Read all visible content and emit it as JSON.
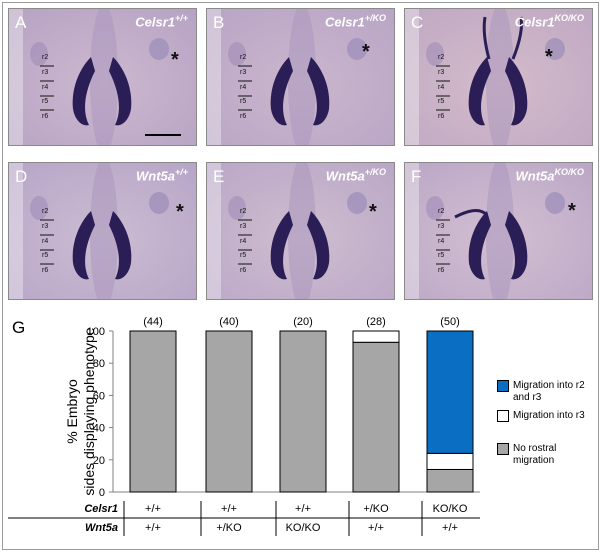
{
  "panels": [
    {
      "letter": "A",
      "gene": "Celsr1",
      "genotype": "+/+",
      "scale_bar": true,
      "asterisk": true
    },
    {
      "letter": "B",
      "gene": "Celsr1",
      "genotype": "+/KO",
      "asterisk": true
    },
    {
      "letter": "C",
      "gene": "Celsr1",
      "genotype": "KO/KO",
      "asterisk": true
    },
    {
      "letter": "D",
      "gene": "Wnt5a",
      "genotype": "+/+",
      "asterisk": true
    },
    {
      "letter": "E",
      "gene": "Wnt5a",
      "genotype": "+/KO",
      "asterisk": true
    },
    {
      "letter": "F",
      "gene": "Wnt5a",
      "genotype": "KO/KO",
      "asterisk": true
    }
  ],
  "segment_labels": [
    "r2",
    "r3",
    "r4",
    "r5",
    "r6"
  ],
  "asterisk_symbol": "*",
  "graph": {
    "letter": "G",
    "genotype_rows": [
      {
        "label": "Celsr1",
        "values": [
          "+/+",
          "+/+",
          "+/+",
          "+/KO",
          "KO/KO"
        ]
      },
      {
        "label": "Wnt5a",
        "values": [
          "+/+",
          "+/KO",
          "KO/KO",
          "+/+",
          "+/+"
        ]
      }
    ]
  },
  "chart_data": {
    "type": "bar",
    "stacked": true,
    "ylabel": "% Embryo sides displaying phenotype",
    "ylim": [
      0,
      100
    ],
    "yticks": [
      0,
      20,
      40,
      60,
      80,
      100
    ],
    "n_labels": [
      "(44)",
      "(40)",
      "(20)",
      "(28)",
      "(50)"
    ],
    "series": [
      {
        "name": "No rostral migration",
        "color": "#a6a6a6",
        "values": [
          100,
          100,
          100,
          93,
          14
        ]
      },
      {
        "name": "Migration into r3",
        "color": "#ffffff",
        "values": [
          0,
          0,
          0,
          7,
          10
        ]
      },
      {
        "name": "Migration into r2 and r3",
        "color": "#0a6fc2",
        "values": [
          0,
          0,
          0,
          0,
          76
        ]
      }
    ],
    "legend_order": [
      2,
      1,
      0
    ],
    "legend_position": "right"
  }
}
